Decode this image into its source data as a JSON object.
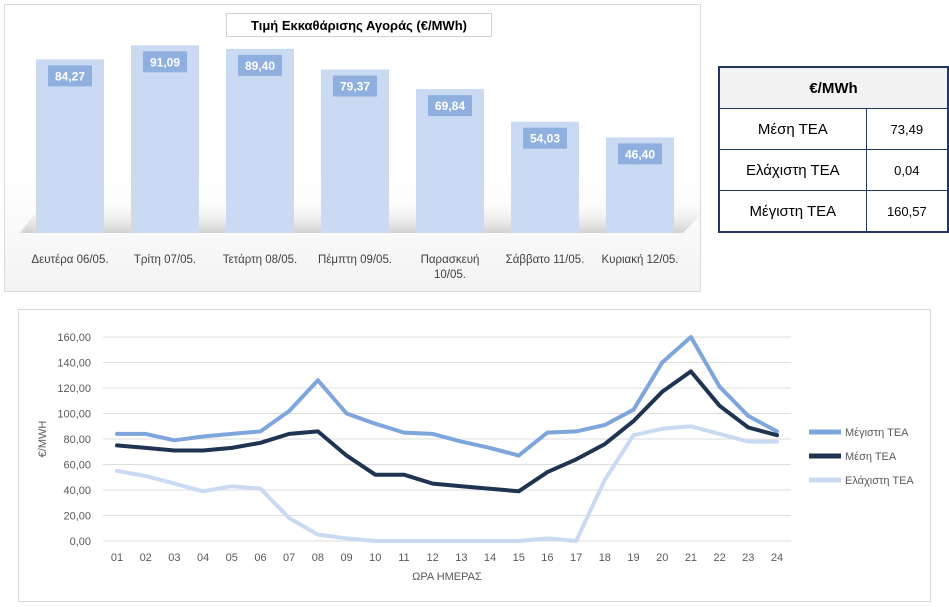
{
  "stats_table": {
    "header": "€/MWh",
    "rows": [
      {
        "label": "Μέση ΤΕΑ",
        "value": "73,49"
      },
      {
        "label": "Ελάχιστη ΤΕΑ",
        "value": "0,04"
      },
      {
        "label": "Μέγιστη ΤΕΑ",
        "value": "160,57"
      }
    ]
  },
  "chart_data": [
    {
      "type": "bar",
      "title": "Τιμή Εκκαθάρισης Αγοράς (€/MWh)",
      "categories": [
        "Δευτέρα 06/05.",
        "Τρίτη 07/05.",
        "Τετάρτη 08/05.",
        "Πέμπτη 09/05.",
        "Παρασκευή 10/05.",
        "Σάββατο 11/05.",
        "Κυριακή 12/05."
      ],
      "values": [
        84.27,
        91.09,
        89.4,
        79.37,
        69.84,
        54.03,
        46.4
      ],
      "value_labels": [
        "84,27",
        "91,09",
        "89,40",
        "79,37",
        "69,84",
        "54,03",
        "46,40"
      ],
      "ylim": [
        0,
        100
      ],
      "colors": {
        "bar": "#c9daf2",
        "label_bg": "#8fb0df",
        "label_text": "#ffffff"
      }
    },
    {
      "type": "line",
      "xlabel": "ΩΡΑ ΗΜΕΡΑΣ",
      "ylabel": "€/MWH",
      "x": [
        "01",
        "02",
        "03",
        "04",
        "05",
        "06",
        "07",
        "08",
        "09",
        "10",
        "11",
        "12",
        "13",
        "14",
        "15",
        "16",
        "17",
        "18",
        "19",
        "20",
        "21",
        "22",
        "23",
        "24"
      ],
      "yticks": [
        "0,00",
        "20,00",
        "40,00",
        "60,00",
        "80,00",
        "100,00",
        "120,00",
        "140,00",
        "160,00"
      ],
      "ylim": [
        0,
        160
      ],
      "grid": true,
      "legend_position": "right",
      "series": [
        {
          "name": "Μέγιστη ΤΕΑ",
          "color": "#7ea6dc",
          "values": [
            84,
            84,
            79,
            82,
            84,
            86,
            102,
            126,
            100,
            92,
            85,
            84,
            78,
            73,
            67,
            85,
            86,
            91,
            103,
            140,
            160,
            121,
            98,
            86
          ]
        },
        {
          "name": "Μέση ΤΕΑ",
          "color": "#1f3352",
          "values": [
            75,
            73,
            71,
            71,
            73,
            77,
            84,
            86,
            67,
            52,
            52,
            45,
            43,
            41,
            39,
            54,
            64,
            76,
            94,
            117,
            133,
            106,
            89,
            83
          ]
        },
        {
          "name": "Ελάχιστη ΤΕΑ",
          "color": "#c9daf2",
          "values": [
            55,
            51,
            45,
            39,
            43,
            41,
            18,
            5,
            2,
            0,
            0,
            0,
            0,
            0,
            0,
            2,
            0,
            48,
            83,
            88,
            90,
            84,
            78,
            78
          ]
        }
      ]
    }
  ]
}
